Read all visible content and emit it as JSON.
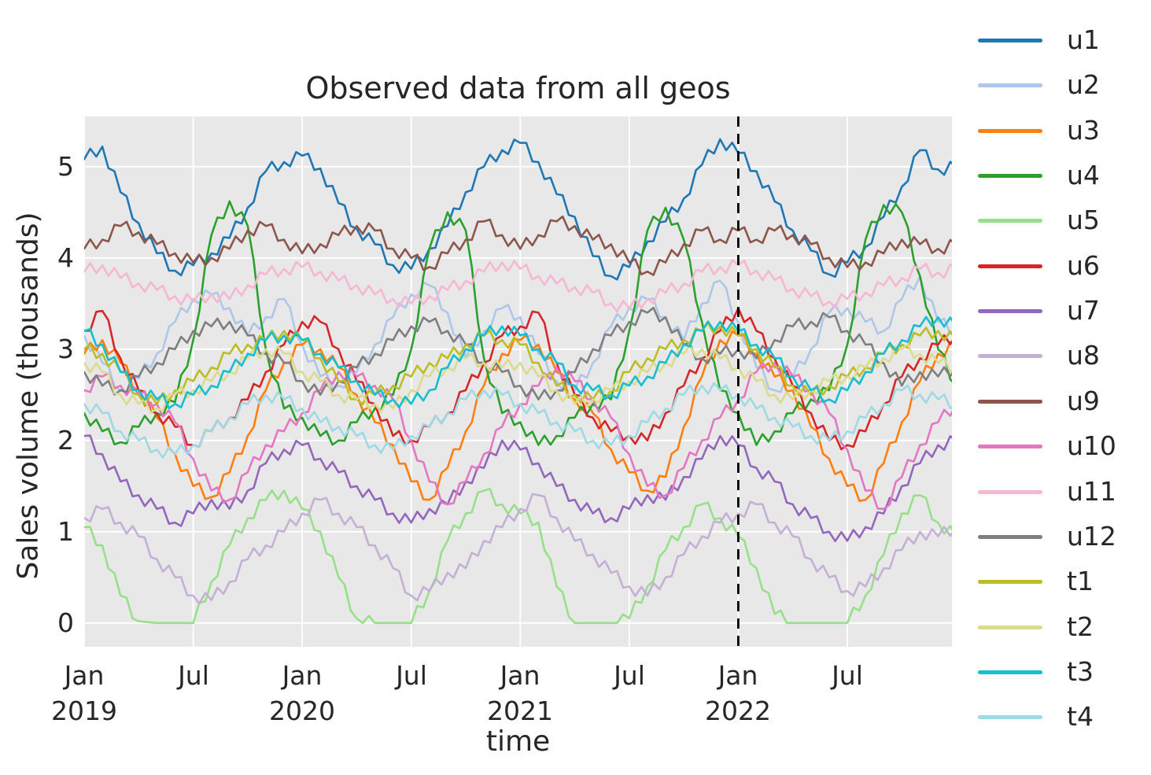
{
  "figure": {
    "title": "Observed data from all geos"
  },
  "axes": {
    "x_label": "time",
    "y_label": "Sales volume (thousands)",
    "y_ticks": [
      "0",
      "1",
      "2",
      "3",
      "4",
      "5"
    ],
    "x_ticks": [
      {
        "line1": "Jan",
        "line2": "2019"
      },
      {
        "line1": "Jul",
        "line2": ""
      },
      {
        "line1": "Jan",
        "line2": "2020"
      },
      {
        "line1": "Jul",
        "line2": ""
      },
      {
        "line1": "Jan",
        "line2": "2021"
      },
      {
        "line1": "Jul",
        "line2": ""
      },
      {
        "line1": "Jan",
        "line2": "2022"
      },
      {
        "line1": "Jul",
        "line2": ""
      }
    ]
  },
  "legend": {
    "entries": [
      {
        "label": "u1",
        "color": "#1f77b4"
      },
      {
        "label": "u2",
        "color": "#aec7e8"
      },
      {
        "label": "u3",
        "color": "#ff7f0e"
      },
      {
        "label": "u4",
        "color": "#2ca02c"
      },
      {
        "label": "u5",
        "color": "#98df8a"
      },
      {
        "label": "u6",
        "color": "#d62728"
      },
      {
        "label": "u7",
        "color": "#9467bd"
      },
      {
        "label": "u8",
        "color": "#c5b0d5"
      },
      {
        "label": "u9",
        "color": "#8c564b"
      },
      {
        "label": "u10",
        "color": "#e377c2"
      },
      {
        "label": "u11",
        "color": "#f7b6d2"
      },
      {
        "label": "u12",
        "color": "#7f7f7f"
      },
      {
        "label": "t1",
        "color": "#bcbd22"
      },
      {
        "label": "t2",
        "color": "#dbdb8d"
      },
      {
        "label": "t3",
        "color": "#17becf"
      },
      {
        "label": "t4",
        "color": "#9edae5"
      }
    ]
  },
  "chart_data": {
    "type": "line",
    "title": "Observed data from all geos",
    "xlabel": "time",
    "ylabel": "Sales volume (thousands)",
    "x_unit": "months since Jan 2019",
    "x_months": [
      0,
      1,
      2,
      3,
      4,
      5,
      6,
      7,
      8,
      9,
      10,
      11,
      12,
      13,
      14,
      15,
      16,
      17,
      18,
      19,
      20,
      21,
      22,
      23,
      24,
      25,
      26,
      27,
      28,
      29,
      30,
      31,
      32,
      33,
      34,
      35,
      36,
      37,
      38,
      39,
      40,
      41,
      42,
      43,
      44,
      45,
      46,
      47,
      48
    ],
    "xlim_years": [
      0,
      3.98
    ],
    "ylim": [
      -0.26,
      5.55
    ],
    "x_tick_positions_years": [
      0,
      0.5,
      1.0,
      1.5,
      2.0,
      2.5,
      3.0,
      3.5
    ],
    "y_tick_values": [
      0,
      1,
      2,
      3,
      4,
      5
    ],
    "grid": "white gridlines on light gray panel",
    "legend_position": "right, outside axes",
    "plot_bg": "#e8e8e8",
    "grid_color": "#ffffff",
    "noise_texture": 0.07,
    "event_line": {
      "x_years": 3.0,
      "at_label": "Jan 2022",
      "style": "dashed",
      "color": "#000000"
    },
    "series": [
      {
        "name": "u1",
        "color": "#1f77b4",
        "values": [
          5.08,
          5.22,
          4.72,
          4.38,
          4.05,
          3.86,
          3.92,
          4.05,
          4.22,
          4.55,
          4.95,
          5.05,
          5.12,
          4.98,
          4.6,
          4.32,
          4.15,
          3.92,
          3.88,
          4.1,
          4.35,
          4.72,
          5.0,
          5.18,
          5.26,
          5.05,
          4.7,
          4.45,
          4.02,
          3.8,
          3.9,
          4.18,
          4.4,
          4.65,
          5.02,
          5.3,
          5.15,
          4.95,
          4.62,
          4.3,
          4.08,
          3.82,
          3.95,
          4.12,
          4.45,
          4.78,
          5.18,
          4.97,
          5.0
        ]
      },
      {
        "name": "u2",
        "color": "#aec7e8",
        "values": [
          3.15,
          2.85,
          2.55,
          2.68,
          2.95,
          3.3,
          3.55,
          3.6,
          3.45,
          3.15,
          3.35,
          3.55,
          3.05,
          2.7,
          2.6,
          2.75,
          3.05,
          3.35,
          3.6,
          3.7,
          3.4,
          2.9,
          3.2,
          3.45,
          3.35,
          2.95,
          2.65,
          2.55,
          2.85,
          3.25,
          3.45,
          3.55,
          3.35,
          3.1,
          3.5,
          3.75,
          3.3,
          2.8,
          2.55,
          2.7,
          3.0,
          3.4,
          3.45,
          3.3,
          3.2,
          3.55,
          3.8,
          3.3,
          3.2
        ]
      },
      {
        "name": "u3",
        "color": "#ff7f0e",
        "values": [
          2.95,
          3.1,
          2.85,
          2.55,
          2.25,
          1.85,
          1.5,
          1.38,
          1.65,
          2.05,
          2.55,
          2.85,
          3.05,
          3.0,
          2.8,
          2.5,
          2.2,
          1.95,
          1.55,
          1.35,
          1.7,
          2.1,
          2.6,
          2.95,
          3.1,
          3.05,
          2.75,
          2.45,
          2.3,
          1.9,
          1.65,
          1.45,
          1.6,
          2.15,
          2.7,
          3.1,
          3.15,
          2.95,
          2.7,
          2.55,
          2.15,
          1.8,
          1.5,
          1.35,
          1.75,
          2.2,
          2.65,
          2.95,
          3.05
        ]
      },
      {
        "name": "u4",
        "color": "#2ca02c",
        "values": [
          2.3,
          2.1,
          1.98,
          2.15,
          2.3,
          2.42,
          3.1,
          4.25,
          4.62,
          4.35,
          3.0,
          2.35,
          2.25,
          2.05,
          2.0,
          2.2,
          2.35,
          2.5,
          3.0,
          4.1,
          4.5,
          4.3,
          2.9,
          2.3,
          2.2,
          1.95,
          2.05,
          2.25,
          2.4,
          2.45,
          3.2,
          4.3,
          4.55,
          4.2,
          3.3,
          2.55,
          2.3,
          1.95,
          2.1,
          2.3,
          2.45,
          2.55,
          3.05,
          4.2,
          4.58,
          4.5,
          3.8,
          3.0,
          2.6
        ]
      },
      {
        "name": "u5",
        "color": "#98df8a",
        "values": [
          1.05,
          0.85,
          0.3,
          0.02,
          0,
          0,
          0,
          0.45,
          0.85,
          1.15,
          1.35,
          1.45,
          1.25,
          1.0,
          0.5,
          0.05,
          0,
          0,
          0,
          0.35,
          0.9,
          1.2,
          1.45,
          1.3,
          1.2,
          1.1,
          0.4,
          0,
          0,
          0,
          0.05,
          0.4,
          0.8,
          1.05,
          1.3,
          1.15,
          0.95,
          0.6,
          0.1,
          0,
          0,
          0,
          0,
          0.3,
          0.75,
          1.2,
          1.4,
          1.1,
          0.95
        ]
      },
      {
        "name": "u6",
        "color": "#d62728",
        "values": [
          3.2,
          3.42,
          2.9,
          2.55,
          2.3,
          2.15,
          1.95,
          2.1,
          2.25,
          2.45,
          2.75,
          3.05,
          3.3,
          3.3,
          3.0,
          2.65,
          2.4,
          2.05,
          2.0,
          2.15,
          2.3,
          2.55,
          2.85,
          3.15,
          3.25,
          3.4,
          2.85,
          2.5,
          2.25,
          2.1,
          2.05,
          2.0,
          2.3,
          2.6,
          2.9,
          3.2,
          3.45,
          3.2,
          2.9,
          2.6,
          2.3,
          2.0,
          1.95,
          2.1,
          2.4,
          2.7,
          2.9,
          3.05,
          3.15
        ]
      },
      {
        "name": "u7",
        "color": "#9467bd",
        "values": [
          2.05,
          1.85,
          1.55,
          1.4,
          1.25,
          1.1,
          1.2,
          1.35,
          1.25,
          1.45,
          1.75,
          1.9,
          1.95,
          1.8,
          1.65,
          1.5,
          1.35,
          1.2,
          1.1,
          1.25,
          1.3,
          1.55,
          1.7,
          2.0,
          1.9,
          1.75,
          1.5,
          1.35,
          1.2,
          1.15,
          1.25,
          1.4,
          1.35,
          1.6,
          1.8,
          2.05,
          1.95,
          1.7,
          1.55,
          1.3,
          1.15,
          1.0,
          0.9,
          1.05,
          1.2,
          1.5,
          1.75,
          1.95,
          2.0
        ]
      },
      {
        "name": "u8",
        "color": "#c5b0d5",
        "values": [
          1.15,
          1.25,
          1.1,
          0.95,
          0.7,
          0.5,
          0.3,
          0.25,
          0.45,
          0.7,
          0.85,
          1.0,
          1.2,
          1.35,
          1.2,
          1.05,
          0.85,
          0.6,
          0.3,
          0.35,
          0.55,
          0.6,
          0.9,
          1.05,
          1.25,
          1.4,
          1.15,
          0.9,
          0.75,
          0.55,
          0.4,
          0.3,
          0.5,
          0.75,
          0.95,
          1.1,
          1.2,
          1.3,
          1.1,
          0.95,
          0.7,
          0.5,
          0.35,
          0.4,
          0.6,
          0.8,
          1.0,
          0.95,
          1.05
        ]
      },
      {
        "name": "u9",
        "color": "#8c564b",
        "values": [
          4.1,
          4.2,
          4.35,
          4.28,
          4.15,
          4.05,
          3.95,
          4.0,
          4.1,
          4.3,
          4.35,
          4.2,
          4.05,
          4.15,
          4.25,
          4.35,
          4.3,
          4.1,
          4.0,
          3.9,
          4.05,
          4.2,
          4.4,
          4.25,
          4.1,
          4.25,
          4.4,
          4.35,
          4.2,
          4.15,
          3.95,
          3.85,
          3.95,
          4.15,
          4.3,
          4.2,
          4.3,
          4.2,
          4.3,
          4.25,
          4.15,
          4.0,
          3.9,
          3.95,
          4.05,
          4.2,
          4.15,
          4.1,
          4.15
        ]
      },
      {
        "name": "u10",
        "color": "#e377c2",
        "values": [
          2.55,
          2.7,
          2.6,
          2.5,
          2.4,
          2.2,
          1.8,
          1.45,
          1.35,
          1.65,
          1.95,
          2.1,
          2.3,
          2.55,
          2.75,
          2.7,
          2.6,
          2.45,
          2.0,
          1.55,
          1.3,
          1.55,
          1.85,
          2.15,
          2.4,
          2.6,
          2.8,
          2.65,
          2.45,
          2.25,
          1.85,
          1.5,
          1.4,
          1.7,
          2.0,
          2.25,
          2.45,
          2.75,
          2.85,
          2.7,
          2.55,
          2.3,
          1.9,
          1.45,
          1.25,
          1.6,
          1.95,
          2.2,
          2.4
        ]
      },
      {
        "name": "u11",
        "color": "#f7b6d2",
        "values": [
          3.85,
          3.92,
          3.78,
          3.72,
          3.65,
          3.58,
          3.52,
          3.6,
          3.55,
          3.7,
          3.82,
          3.88,
          3.9,
          3.85,
          3.75,
          3.7,
          3.6,
          3.55,
          3.5,
          3.58,
          3.65,
          3.75,
          3.85,
          3.95,
          3.88,
          3.8,
          3.72,
          3.68,
          3.62,
          3.5,
          3.45,
          3.55,
          3.62,
          3.72,
          3.85,
          3.9,
          3.92,
          3.86,
          3.76,
          3.66,
          3.58,
          3.52,
          3.55,
          3.62,
          3.7,
          3.78,
          3.88,
          3.84,
          3.88
        ]
      },
      {
        "name": "u12",
        "color": "#7f7f7f",
        "values": [
          2.75,
          2.6,
          2.55,
          2.7,
          2.85,
          3.0,
          3.2,
          3.25,
          3.3,
          3.15,
          2.95,
          2.85,
          2.65,
          2.5,
          2.65,
          2.8,
          2.95,
          3.1,
          3.25,
          3.3,
          3.2,
          3.05,
          2.85,
          2.75,
          2.6,
          2.45,
          2.55,
          2.75,
          3.0,
          3.15,
          3.3,
          3.4,
          3.35,
          3.05,
          2.9,
          2.95,
          3.0,
          2.9,
          3.1,
          3.25,
          3.3,
          3.35,
          3.2,
          3.05,
          2.85,
          2.6,
          2.75,
          2.7,
          2.8
        ]
      },
      {
        "name": "t1",
        "color": "#bcbd22",
        "values": [
          3.0,
          2.95,
          2.75,
          2.5,
          2.4,
          2.55,
          2.65,
          2.8,
          2.95,
          3.05,
          3.1,
          3.2,
          3.1,
          2.9,
          2.65,
          2.45,
          2.5,
          2.6,
          2.7,
          2.85,
          2.9,
          3.05,
          3.15,
          3.1,
          3.05,
          2.85,
          2.6,
          2.5,
          2.45,
          2.55,
          2.75,
          2.9,
          3.0,
          3.1,
          3.2,
          3.25,
          3.15,
          3.0,
          2.8,
          2.6,
          2.5,
          2.6,
          2.7,
          2.8,
          2.95,
          3.05,
          3.15,
          3.2,
          3.1
        ]
      },
      {
        "name": "t2",
        "color": "#dbdb8d",
        "values": [
          2.85,
          2.75,
          2.5,
          2.4,
          2.35,
          2.5,
          2.55,
          2.65,
          2.75,
          2.9,
          3.0,
          2.95,
          2.75,
          2.65,
          2.5,
          2.45,
          2.4,
          2.35,
          2.55,
          2.7,
          2.8,
          2.9,
          2.85,
          2.8,
          2.85,
          2.7,
          2.55,
          2.4,
          2.45,
          2.55,
          2.65,
          2.75,
          2.85,
          2.95,
          3.0,
          2.9,
          2.8,
          2.65,
          2.5,
          2.45,
          2.55,
          2.65,
          2.7,
          2.8,
          2.9,
          3.0,
          2.95,
          2.85,
          2.8
        ]
      },
      {
        "name": "t3",
        "color": "#17becf",
        "values": [
          3.2,
          3.05,
          2.75,
          2.55,
          2.45,
          2.4,
          2.5,
          2.6,
          2.75,
          2.95,
          3.1,
          3.15,
          3.1,
          2.95,
          2.8,
          2.65,
          2.5,
          2.45,
          2.4,
          2.55,
          2.8,
          3.0,
          3.15,
          3.25,
          3.15,
          3.0,
          2.85,
          2.6,
          2.55,
          2.5,
          2.6,
          2.7,
          2.85,
          3.05,
          3.2,
          3.3,
          3.2,
          3.05,
          2.9,
          2.7,
          2.55,
          2.45,
          2.55,
          2.75,
          2.95,
          3.1,
          3.25,
          3.35,
          3.25
        ]
      },
      {
        "name": "t4",
        "color": "#9edae5",
        "values": [
          2.4,
          2.3,
          2.1,
          2.0,
          1.9,
          1.85,
          1.95,
          2.1,
          2.25,
          2.4,
          2.5,
          2.45,
          2.35,
          2.2,
          2.15,
          2.05,
          1.95,
          1.9,
          2.05,
          2.15,
          2.3,
          2.45,
          2.55,
          2.5,
          2.4,
          2.3,
          2.2,
          2.1,
          2.0,
          1.95,
          2.05,
          2.2,
          2.35,
          2.5,
          2.6,
          2.55,
          2.5,
          2.35,
          2.25,
          2.15,
          2.05,
          2.0,
          2.1,
          2.25,
          2.4,
          2.55,
          2.5,
          2.45,
          2.4
        ]
      }
    ]
  }
}
